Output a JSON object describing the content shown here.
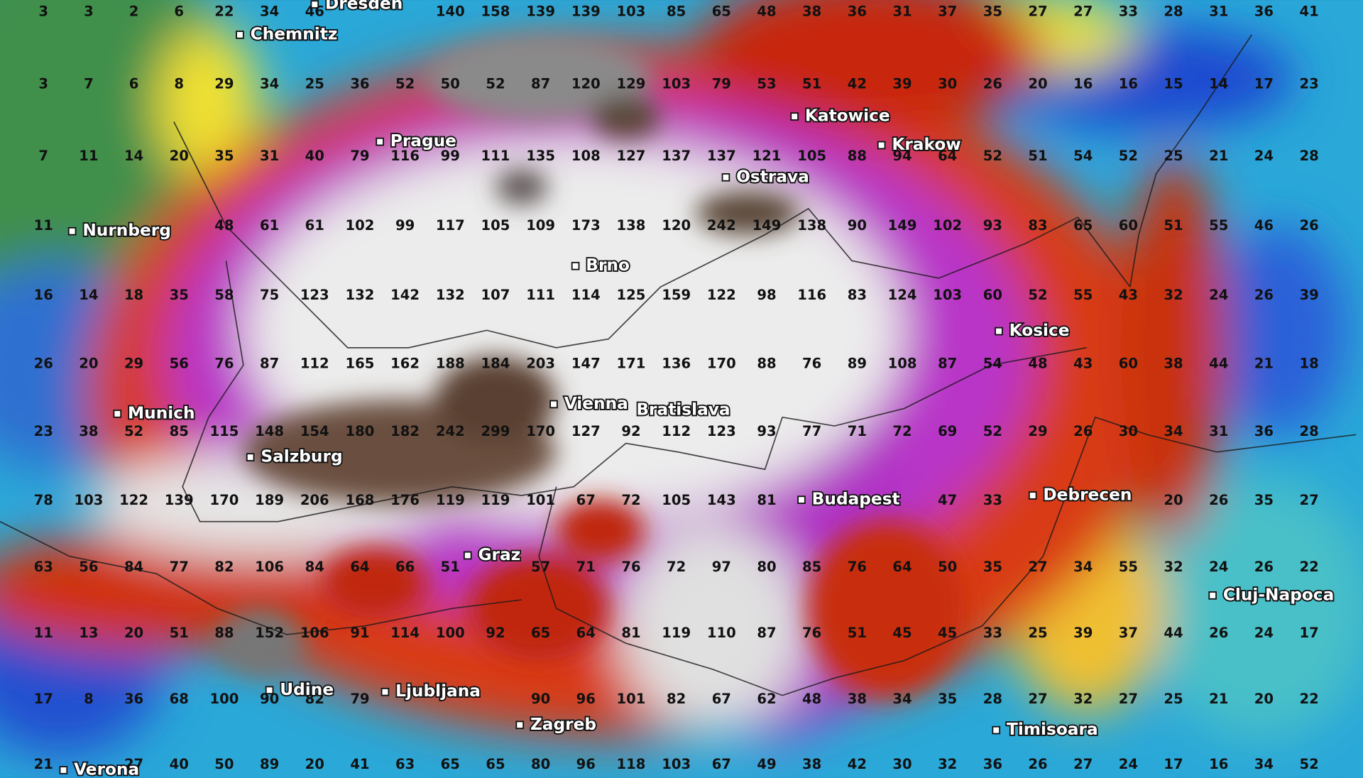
{
  "grid": {
    "rows": [
      [
        3,
        3,
        2,
        6,
        22,
        34,
        46,
        null,
        null,
        140,
        158,
        139,
        139,
        103,
        85,
        65,
        48,
        38,
        36,
        31,
        37,
        35,
        27,
        27,
        33,
        28,
        31,
        36,
        41
      ],
      [
        3,
        7,
        6,
        8,
        29,
        34,
        25,
        36,
        52,
        50,
        52,
        87,
        120,
        129,
        103,
        79,
        53,
        51,
        42,
        39,
        30,
        26,
        20,
        16,
        16,
        15,
        14,
        17,
        23
      ],
      [
        7,
        11,
        14,
        20,
        35,
        31,
        40,
        79,
        116,
        99,
        111,
        135,
        108,
        127,
        137,
        137,
        121,
        105,
        88,
        94,
        64,
        52,
        51,
        54,
        52,
        25,
        21,
        24,
        28
      ],
      [
        11,
        null,
        null,
        null,
        48,
        61,
        61,
        102,
        99,
        117,
        105,
        109,
        173,
        138,
        120,
        242,
        149,
        138,
        90,
        149,
        102,
        93,
        83,
        65,
        60,
        51,
        55,
        46,
        26
      ],
      [
        16,
        14,
        18,
        35,
        58,
        75,
        123,
        132,
        142,
        132,
        107,
        111,
        114,
        125,
        159,
        122,
        98,
        116,
        83,
        124,
        103,
        60,
        52,
        55,
        43,
        32,
        24,
        26,
        39
      ],
      [
        26,
        20,
        29,
        56,
        76,
        87,
        112,
        165,
        162,
        188,
        184,
        203,
        147,
        171,
        136,
        170,
        88,
        76,
        89,
        108,
        87,
        54,
        48,
        43,
        60,
        38,
        44,
        21,
        18
      ],
      [
        23,
        38,
        52,
        85,
        115,
        148,
        154,
        180,
        182,
        242,
        299,
        170,
        127,
        92,
        112,
        123,
        93,
        77,
        71,
        72,
        69,
        52,
        29,
        26,
        30,
        34,
        31,
        36,
        28
      ],
      [
        78,
        103,
        122,
        139,
        170,
        189,
        206,
        168,
        176,
        119,
        119,
        101,
        67,
        72,
        105,
        143,
        81,
        null,
        null,
        null,
        47,
        33,
        null,
        null,
        null,
        20,
        26,
        35,
        27
      ],
      [
        63,
        56,
        84,
        77,
        82,
        106,
        84,
        64,
        66,
        51,
        null,
        57,
        71,
        76,
        72,
        97,
        80,
        85,
        76,
        64,
        50,
        35,
        27,
        34,
        55,
        32,
        24,
        26,
        22
      ],
      [
        11,
        13,
        20,
        51,
        88,
        152,
        106,
        91,
        114,
        100,
        92,
        65,
        64,
        81,
        119,
        110,
        87,
        76,
        51,
        45,
        45,
        33,
        25,
        39,
        37,
        44,
        26,
        24,
        17
      ],
      [
        17,
        8,
        36,
        68,
        100,
        90,
        82,
        79,
        null,
        null,
        null,
        90,
        96,
        101,
        82,
        67,
        62,
        48,
        38,
        34,
        35,
        28,
        27,
        32,
        27,
        25,
        21,
        20,
        22
      ],
      [
        21,
        null,
        27,
        40,
        50,
        89,
        20,
        41,
        63,
        65,
        65,
        80,
        96,
        118,
        103,
        67,
        49,
        38,
        42,
        30,
        32,
        36,
        26,
        27,
        24,
        17,
        16,
        34,
        52
      ]
    ]
  },
  "cities": [
    {
      "name": "Dresden"
    },
    {
      "name": "Chemnitz"
    },
    {
      "name": "Prague"
    },
    {
      "name": "Katowice"
    },
    {
      "name": "Krakow"
    },
    {
      "name": "Ostrava"
    },
    {
      "name": "Nurnberg"
    },
    {
      "name": "Brno"
    },
    {
      "name": "Kosice"
    },
    {
      "name": "Munich"
    },
    {
      "name": "Vienna"
    },
    {
      "name": "Bratislava"
    },
    {
      "name": "Salzburg"
    },
    {
      "name": "Budapest"
    },
    {
      "name": "Debrecen"
    },
    {
      "name": "Graz"
    },
    {
      "name": "Cluj-Napoca"
    },
    {
      "name": "Udine"
    },
    {
      "name": "Ljubljana"
    },
    {
      "name": "Zagreb"
    },
    {
      "name": "Timisoara"
    },
    {
      "name": "Verona"
    }
  ]
}
